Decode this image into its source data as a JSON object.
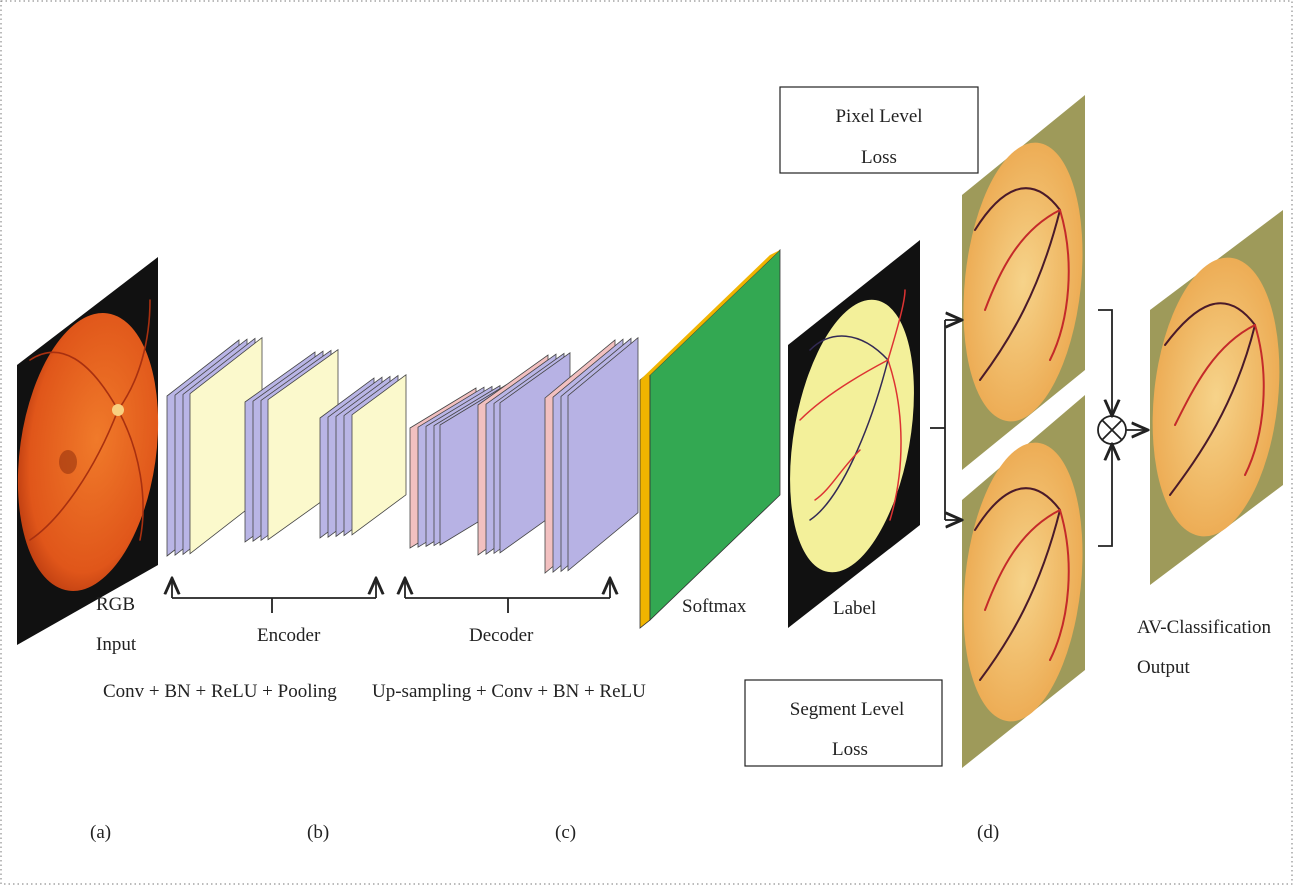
{
  "input": {
    "lines": [
      "RGB",
      "Input"
    ]
  },
  "encoder": {
    "label": "Encoder",
    "ops": "Conv + BN + ReLU + Pooling"
  },
  "decoder": {
    "label": "Decoder",
    "ops": "Up-sampling + Conv + BN + ReLU"
  },
  "softmax": "Softmax",
  "label": "Label",
  "pixel_loss": {
    "lines": [
      "Pixel Level",
      "Loss"
    ]
  },
  "segment_loss": {
    "lines": [
      "Segment Level",
      "Loss"
    ]
  },
  "output": {
    "lines": [
      "AV-Classification",
      "Output"
    ]
  },
  "panel_labels": [
    "(a)",
    "(b)",
    "(c)",
    "(d)"
  ]
}
